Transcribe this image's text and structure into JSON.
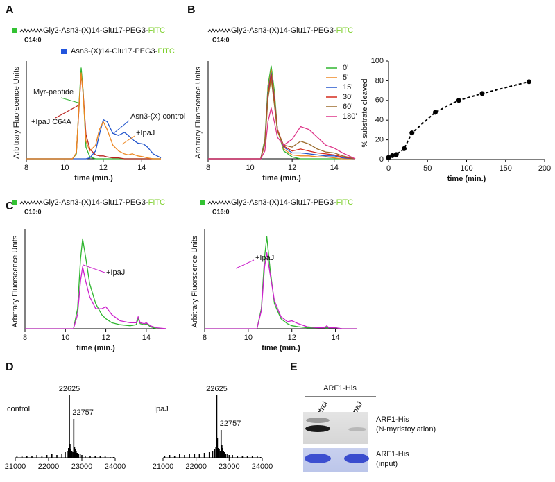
{
  "panel_labels": [
    "A",
    "B",
    "C",
    "D",
    "E"
  ],
  "chart_data": [
    {
      "type": "line",
      "ylabel": "Arbitrary Fluorscence Units",
      "xlabel": "time (min.)",
      "substrates": [
        {
          "prefix": "Gly2-Asn3-(X)14-Glu17-PEG3-",
          "suffix": "FITC",
          "lipid": "C14:0",
          "marker_color": "#33c233"
        },
        {
          "prefix": "Asn3-(X)14-Glu17-PEG3-",
          "suffix": "FITC",
          "marker_color": "#2255dd"
        }
      ],
      "xlim": [
        8,
        15
      ],
      "xticks": [
        8,
        10,
        12,
        14
      ],
      "ylim": [
        0,
        100
      ],
      "x": [
        8,
        10.4,
        10.6,
        10.75,
        10.85,
        10.95,
        11.1,
        11.3,
        11.6,
        11.8,
        12,
        12.2,
        12.5,
        12.8,
        13.1,
        13.3,
        13.5,
        13.8,
        14.1,
        14.3,
        14.6,
        15
      ],
      "series": [
        {
          "name": "Myr-peptide",
          "color": "#2fb52f",
          "values": [
            0,
            0,
            5,
            60,
            93,
            70,
            12,
            2,
            0,
            0,
            0,
            0,
            0,
            0,
            0,
            0,
            0,
            0,
            0,
            0,
            0,
            0
          ]
        },
        {
          "name": "+IpaJ C64A",
          "color": "#b8201c",
          "values": [
            0,
            0,
            6,
            55,
            86,
            68,
            25,
            10,
            4,
            3,
            3,
            2,
            1,
            1,
            0,
            0,
            0,
            0,
            0,
            0,
            0,
            0
          ]
        },
        {
          "name": "Asn3-(X) control",
          "color": "#2255cc",
          "values": [
            0,
            0,
            0,
            0,
            0,
            0,
            0,
            1,
            8,
            25,
            40,
            38,
            26,
            24,
            27,
            24,
            20,
            16,
            15,
            12,
            5,
            1
          ]
        },
        {
          "name": "+IpaJ",
          "color": "#ee8822",
          "values": [
            0,
            0,
            6,
            58,
            88,
            66,
            18,
            8,
            14,
            30,
            38,
            30,
            14,
            8,
            5,
            4,
            5,
            3,
            2,
            1,
            0,
            0
          ]
        }
      ]
    },
    {
      "type": "line",
      "ylabel": "Arbitrary Fluorscence Units",
      "xlabel": "time (min.)",
      "legend": true,
      "substrates": [
        {
          "prefix": "Gly2-Asn3-(X)14-Glu17-PEG3-",
          "suffix": "FITC",
          "lipid": "C14:0"
        }
      ],
      "xlim": [
        8,
        15
      ],
      "xticks": [
        8,
        10,
        12,
        14
      ],
      "ylim": [
        0,
        100
      ],
      "x": [
        8,
        10.5,
        10.7,
        10.85,
        11,
        11.15,
        11.3,
        11.6,
        12,
        12.4,
        12.8,
        13.2,
        13.6,
        14,
        14.4,
        15
      ],
      "series": [
        {
          "name": "0'",
          "color": "#2fb52f",
          "values": [
            0,
            0,
            20,
            75,
            95,
            70,
            30,
            8,
            2,
            0,
            0,
            0,
            0,
            0,
            0,
            0
          ]
        },
        {
          "name": "5'",
          "color": "#ee8822",
          "values": [
            0,
            0,
            18,
            70,
            91,
            65,
            30,
            10,
            4,
            3,
            3,
            2,
            2,
            1,
            0,
            0
          ]
        },
        {
          "name": "15'",
          "color": "#2255cc",
          "values": [
            0,
            0,
            17,
            68,
            88,
            62,
            30,
            12,
            6,
            6,
            5,
            4,
            3,
            3,
            1,
            0
          ]
        },
        {
          "name": "30'",
          "color": "#d42a1c",
          "values": [
            0,
            0,
            16,
            66,
            86,
            60,
            30,
            13,
            8,
            10,
            8,
            6,
            5,
            4,
            2,
            0
          ]
        },
        {
          "name": "60'",
          "color": "#9a6a2a",
          "values": [
            0,
            0,
            15,
            62,
            82,
            56,
            28,
            14,
            12,
            18,
            15,
            10,
            7,
            6,
            3,
            0
          ]
        },
        {
          "name": "180'",
          "color": "#dd3388",
          "values": [
            0,
            0,
            8,
            38,
            52,
            38,
            22,
            14,
            20,
            33,
            30,
            22,
            14,
            11,
            6,
            0
          ]
        }
      ]
    },
    {
      "type": "scatter",
      "ylabel": "% substrate cleaved",
      "xlabel": "time (min.)",
      "color": "#000000",
      "line_style": "dashed",
      "xlim": [
        0,
        200
      ],
      "xticks": [
        0,
        50,
        100,
        150,
        200
      ],
      "ylim": [
        0,
        100
      ],
      "yticks": [
        0,
        20,
        40,
        60,
        80,
        100
      ],
      "x": [
        0,
        5,
        10,
        20,
        30,
        60,
        90,
        120,
        180
      ],
      "values": [
        2,
        4,
        5,
        11,
        27,
        48,
        60,
        67,
        79
      ]
    },
    {
      "type": "line",
      "ylabel": "Arbitrary Fluorscence Units",
      "xlabel": "time (min.)",
      "substrates": [
        {
          "prefix": "Gly2-Asn3-(X)14-Glu17-PEG3-",
          "suffix": "FITC",
          "lipid": "C10:0",
          "marker_color": "#33c233"
        }
      ],
      "xlim": [
        8,
        15
      ],
      "xticks": [
        8,
        10,
        12,
        14
      ],
      "ylim": [
        0,
        100
      ],
      "x": [
        8,
        10.4,
        10.6,
        10.75,
        10.85,
        11,
        11.2,
        11.5,
        11.8,
        12,
        12.3,
        12.7,
        13.2,
        13.5,
        13.6,
        13.7,
        13.9,
        14,
        14.2,
        14.5,
        15
      ],
      "series": [
        {
          "color": "#2fb52f",
          "values": [
            0,
            0,
            20,
            70,
            90,
            72,
            45,
            25,
            14,
            10,
            6,
            4,
            3,
            4,
            10,
            5,
            4,
            5,
            2,
            0,
            0
          ]
        },
        {
          "name": "+IpaJ",
          "color": "#cc22cc",
          "values": [
            0,
            0,
            14,
            48,
            62,
            48,
            32,
            20,
            20,
            22,
            14,
            8,
            6,
            6,
            12,
            6,
            5,
            6,
            3,
            1,
            0
          ]
        }
      ]
    },
    {
      "type": "line",
      "ylabel": "Arbitrary Fluorscence Units",
      "xlabel": "time (min.)",
      "substrates": [
        {
          "prefix": "Gly2-Asn3-(X)14-Glu17-PEG3-",
          "suffix": "FITC",
          "lipid": "C16:0",
          "marker_color": "#33c233"
        }
      ],
      "xlim": [
        8,
        15
      ],
      "xticks": [
        8,
        10,
        12,
        14
      ],
      "ylim": [
        0,
        100
      ],
      "x": [
        8,
        10.4,
        10.6,
        10.75,
        10.85,
        11,
        11.2,
        11.5,
        11.8,
        12,
        12.3,
        12.7,
        13.2,
        13.5,
        13.6,
        13.7,
        14,
        14.3,
        15
      ],
      "series": [
        {
          "color": "#2fb52f",
          "values": [
            0,
            0,
            20,
            72,
            92,
            60,
            25,
            10,
            5,
            3,
            2,
            1,
            1,
            1,
            1,
            1,
            1,
            0,
            0
          ]
        },
        {
          "name": "+IpaJ",
          "color": "#cc22cc",
          "values": [
            0,
            0,
            18,
            62,
            76,
            55,
            28,
            12,
            7,
            8,
            5,
            2,
            1,
            1,
            3,
            1,
            1,
            0,
            0
          ]
        }
      ]
    },
    {
      "type": "spectrum",
      "title": "control",
      "color": "#000000",
      "xlim": [
        21000,
        24000
      ],
      "xticks": [
        21000,
        22000,
        23000,
        24000
      ],
      "ylim": [
        0,
        100
      ],
      "peak_labels": [
        22625,
        22757
      ],
      "x": [
        21050,
        21200,
        21350,
        21500,
        21650,
        21800,
        21950,
        22100,
        22250,
        22400,
        22500,
        22560,
        22600,
        22625,
        22645,
        22670,
        22700,
        22730,
        22757,
        22780,
        22800,
        22830,
        22860,
        22900,
        22950,
        23000,
        23100,
        23250,
        23400,
        23550,
        23700,
        23850,
        23950
      ],
      "values": [
        2,
        3,
        2,
        3,
        4,
        3,
        4,
        5,
        4,
        6,
        8,
        10,
        14,
        90,
        20,
        12,
        10,
        8,
        56,
        16,
        12,
        9,
        7,
        6,
        5,
        4,
        3,
        3,
        2,
        2,
        2,
        1,
        1
      ]
    },
    {
      "type": "spectrum",
      "title": "IpaJ",
      "color": "#000000",
      "xlim": [
        21000,
        24000
      ],
      "xticks": [
        21000,
        22000,
        23000,
        24000
      ],
      "ylim": [
        0,
        100
      ],
      "peak_labels": [
        22625,
        22757
      ],
      "x": [
        21050,
        21200,
        21350,
        21500,
        21650,
        21800,
        21950,
        22100,
        22250,
        22400,
        22500,
        22560,
        22600,
        22625,
        22645,
        22670,
        22700,
        22730,
        22757,
        22780,
        22800,
        22830,
        22860,
        22900,
        22950,
        23000,
        23100,
        23250,
        23400,
        23550,
        23700,
        23850,
        23950
      ],
      "values": [
        3,
        4,
        3,
        5,
        4,
        5,
        6,
        5,
        7,
        8,
        10,
        12,
        16,
        90,
        28,
        14,
        12,
        10,
        40,
        18,
        14,
        10,
        8,
        6,
        5,
        4,
        4,
        3,
        3,
        2,
        2,
        2,
        1
      ]
    }
  ],
  "gel": {
    "header": "ARF1-His",
    "lanes": [
      "control",
      "IpaJ"
    ],
    "rows": [
      [
        "ARF1-His",
        "(N-myristoylation)"
      ],
      [
        "ARF1-His",
        "(input)"
      ]
    ]
  }
}
